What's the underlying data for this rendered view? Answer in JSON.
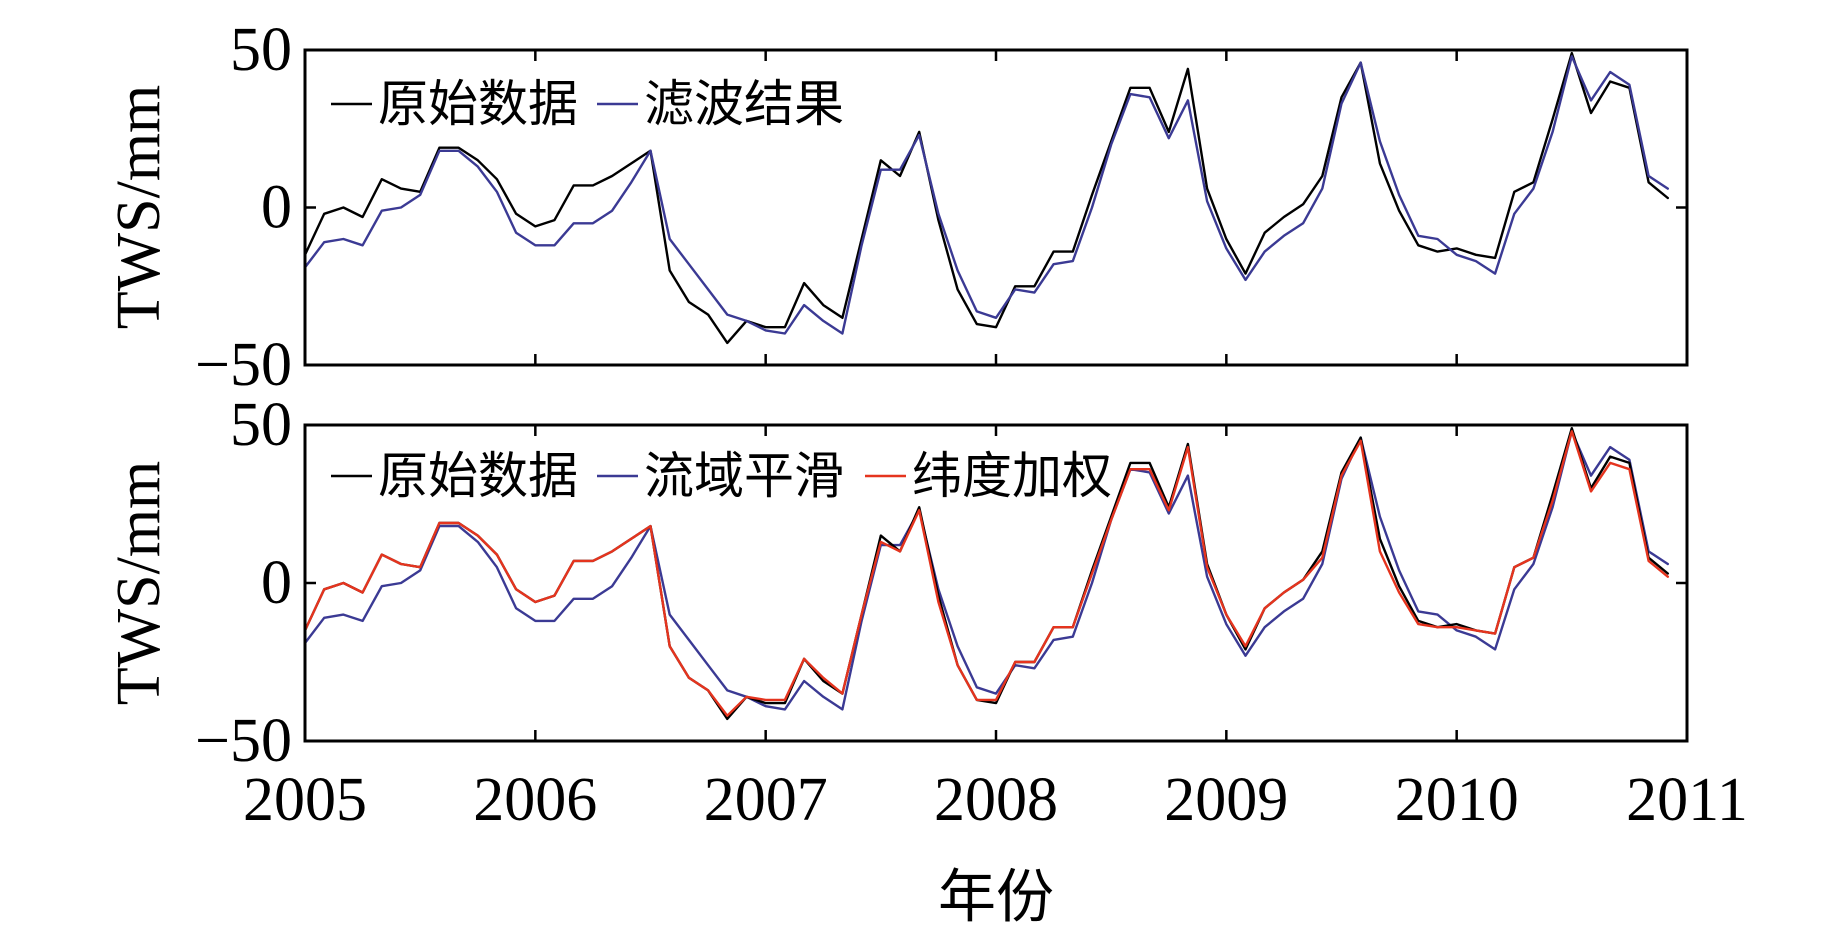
{
  "chart_data": [
    {
      "type": "line",
      "ylabel": "TWS/mm",
      "ylim": [
        -50,
        50
      ],
      "yticks": [
        "50",
        "0",
        "−50"
      ],
      "xlim": [
        "2005",
        "2011"
      ],
      "grid": false,
      "legend": "top-left",
      "x": [
        "2005-01",
        "2005-02",
        "2005-03",
        "2005-04",
        "2005-05",
        "2005-06",
        "2005-07",
        "2005-08",
        "2005-09",
        "2005-10",
        "2005-11",
        "2005-12",
        "2006-01",
        "2006-02",
        "2006-03",
        "2006-04",
        "2006-05",
        "2006-06",
        "2006-07",
        "2006-08",
        "2006-09",
        "2006-10",
        "2006-11",
        "2006-12",
        "2007-01",
        "2007-02",
        "2007-03",
        "2007-04",
        "2007-05",
        "2007-06",
        "2007-07",
        "2007-08",
        "2007-09",
        "2007-10",
        "2007-11",
        "2007-12",
        "2008-01",
        "2008-02",
        "2008-03",
        "2008-04",
        "2008-05",
        "2008-06",
        "2008-07",
        "2008-08",
        "2008-09",
        "2008-10",
        "2008-11",
        "2008-12",
        "2009-01",
        "2009-02",
        "2009-03",
        "2009-04",
        "2009-05",
        "2009-06",
        "2009-07",
        "2009-08",
        "2009-09",
        "2009-10",
        "2009-11",
        "2009-12",
        "2010-01",
        "2010-02",
        "2010-03",
        "2010-04",
        "2010-05",
        "2010-06",
        "2010-07",
        "2010-08",
        "2010-09",
        "2010-10",
        "2010-11",
        "2010-12"
      ],
      "series": [
        {
          "name": "原始数据",
          "color": "#000000",
          "values": [
            -15,
            -2,
            0,
            -3,
            9,
            6,
            5,
            19,
            19,
            15,
            9,
            -2,
            -6,
            -4,
            7,
            7,
            10,
            14,
            18,
            -20,
            -30,
            -34,
            -43,
            -36,
            -38,
            -38,
            -24,
            -31,
            -35,
            -10,
            15,
            10,
            24,
            -4,
            -26,
            -37,
            -38,
            -25,
            -25,
            -14,
            -14,
            4,
            21,
            38,
            38,
            24,
            44,
            6,
            -10,
            -21,
            -8,
            -3,
            1,
            10,
            35,
            46,
            14,
            -1,
            -12,
            -14,
            -13,
            -15,
            -16,
            5,
            8,
            28,
            49,
            30,
            40,
            38,
            8,
            3
          ]
        },
        {
          "name": "滤波结果",
          "color": "#3b3a94",
          "values": [
            -19,
            -11,
            -10,
            -12,
            -1,
            0,
            4,
            18,
            18,
            13,
            5,
            -8,
            -12,
            -12,
            -5,
            -5,
            -1,
            8,
            18,
            -10,
            -18,
            -26,
            -34,
            -36,
            -39,
            -40,
            -31,
            -36,
            -40,
            -12,
            12,
            12,
            23,
            -2,
            -20,
            -33,
            -35,
            -26,
            -27,
            -18,
            -17,
            0,
            20,
            36,
            35,
            22,
            34,
            2,
            -13,
            -23,
            -14,
            -9,
            -5,
            6,
            33,
            46,
            21,
            4,
            -9,
            -10,
            -15,
            -17,
            -21,
            -2,
            6,
            24,
            48,
            34,
            43,
            39,
            10,
            6
          ]
        }
      ]
    },
    {
      "type": "line",
      "ylabel": "TWS/mm",
      "xlabel": "年份",
      "ylim": [
        -50,
        50
      ],
      "yticks": [
        "50",
        "0",
        "−50"
      ],
      "xlim": [
        "2005",
        "2011"
      ],
      "xticks": [
        "2005",
        "2006",
        "2007",
        "2008",
        "2009",
        "2010",
        "2011"
      ],
      "grid": false,
      "legend": "top-left",
      "x": [
        "2005-01",
        "2005-02",
        "2005-03",
        "2005-04",
        "2005-05",
        "2005-06",
        "2005-07",
        "2005-08",
        "2005-09",
        "2005-10",
        "2005-11",
        "2005-12",
        "2006-01",
        "2006-02",
        "2006-03",
        "2006-04",
        "2006-05",
        "2006-06",
        "2006-07",
        "2006-08",
        "2006-09",
        "2006-10",
        "2006-11",
        "2006-12",
        "2007-01",
        "2007-02",
        "2007-03",
        "2007-04",
        "2007-05",
        "2007-06",
        "2007-07",
        "2007-08",
        "2007-09",
        "2007-10",
        "2007-11",
        "2007-12",
        "2008-01",
        "2008-02",
        "2008-03",
        "2008-04",
        "2008-05",
        "2008-06",
        "2008-07",
        "2008-08",
        "2008-09",
        "2008-10",
        "2008-11",
        "2008-12",
        "2009-01",
        "2009-02",
        "2009-03",
        "2009-04",
        "2009-05",
        "2009-06",
        "2009-07",
        "2009-08",
        "2009-09",
        "2009-10",
        "2009-11",
        "2009-12",
        "2010-01",
        "2010-02",
        "2010-03",
        "2010-04",
        "2010-05",
        "2010-06",
        "2010-07",
        "2010-08",
        "2010-09",
        "2010-10",
        "2010-11",
        "2010-12"
      ],
      "series": [
        {
          "name": "原始数据",
          "color": "#000000",
          "values": [
            -15,
            -2,
            0,
            -3,
            9,
            6,
            5,
            19,
            19,
            15,
            9,
            -2,
            -6,
            -4,
            7,
            7,
            10,
            14,
            18,
            -20,
            -30,
            -34,
            -43,
            -36,
            -38,
            -38,
            -24,
            -31,
            -35,
            -10,
            15,
            10,
            24,
            -4,
            -26,
            -37,
            -38,
            -25,
            -25,
            -14,
            -14,
            4,
            21,
            38,
            38,
            24,
            44,
            6,
            -10,
            -21,
            -8,
            -3,
            1,
            10,
            35,
            46,
            14,
            -1,
            -12,
            -14,
            -13,
            -15,
            -16,
            5,
            8,
            28,
            49,
            30,
            40,
            38,
            8,
            3
          ]
        },
        {
          "name": "流域平滑",
          "color": "#3b3a94",
          "values": [
            -19,
            -11,
            -10,
            -12,
            -1,
            0,
            4,
            18,
            18,
            13,
            5,
            -8,
            -12,
            -12,
            -5,
            -5,
            -1,
            8,
            18,
            -10,
            -18,
            -26,
            -34,
            -36,
            -39,
            -40,
            -31,
            -36,
            -40,
            -12,
            12,
            12,
            23,
            -2,
            -20,
            -33,
            -35,
            -26,
            -27,
            -18,
            -17,
            0,
            20,
            36,
            35,
            22,
            34,
            2,
            -13,
            -23,
            -14,
            -9,
            -5,
            6,
            33,
            46,
            21,
            4,
            -9,
            -10,
            -15,
            -17,
            -21,
            -2,
            6,
            24,
            48,
            34,
            43,
            39,
            10,
            6
          ]
        },
        {
          "name": "纬度加权",
          "color": "#e5341e",
          "values": [
            -15,
            -2,
            0,
            -3,
            9,
            6,
            5,
            19,
            19,
            15,
            9,
            -2,
            -6,
            -4,
            7,
            7,
            10,
            14,
            18,
            -20,
            -30,
            -34,
            -42,
            -36,
            -37,
            -37,
            -24,
            -30,
            -35,
            -10,
            13,
            10,
            23,
            -6,
            -26,
            -37,
            -37,
            -25,
            -25,
            -14,
            -14,
            3,
            20,
            36,
            36,
            23,
            43,
            5,
            -10,
            -20,
            -8,
            -3,
            1,
            8,
            34,
            45,
            10,
            -3,
            -13,
            -14,
            -14,
            -15,
            -16,
            5,
            8,
            26,
            48,
            29,
            38,
            36,
            7,
            2
          ]
        }
      ]
    }
  ]
}
